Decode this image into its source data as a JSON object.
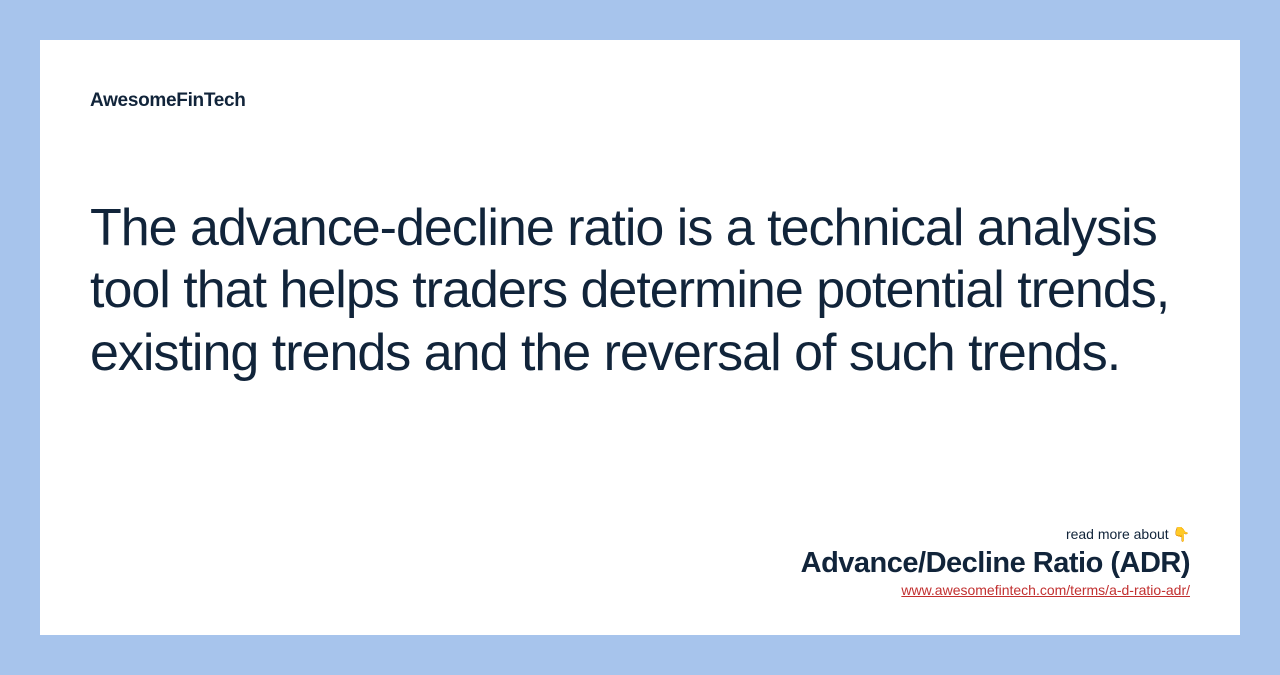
{
  "brand": "AwesomeFinTech",
  "description": "The advance-decline ratio is a technical analysis tool that helps traders determine potential trends, existing trends and the reversal of such trends.",
  "footer": {
    "readMore": "read more about 👇",
    "title": "Advance/Decline Ratio (ADR)",
    "url": "www.awesomefintech.com/terms/a-d-ratio-adr/"
  },
  "colors": {
    "background": "#a7c4ec",
    "cardBackground": "#ffffff",
    "textPrimary": "#11243a",
    "linkColor": "#c23030"
  }
}
